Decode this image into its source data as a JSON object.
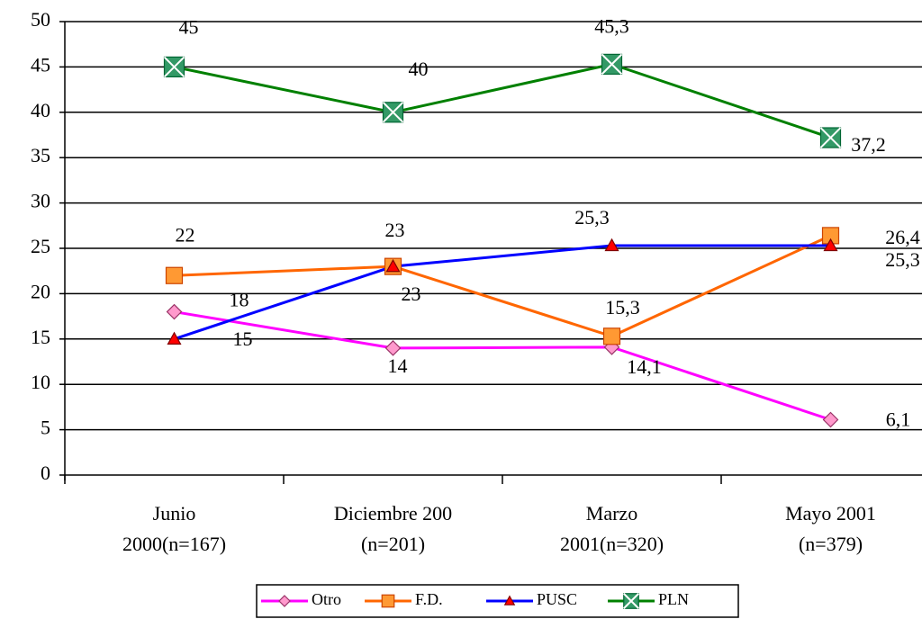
{
  "chart_data": {
    "type": "line",
    "categories": [
      [
        "Junio",
        "2000(n=167)"
      ],
      [
        "Diciembre 200",
        "(n=201)"
      ],
      [
        "Marzo",
        "2001(n=320)"
      ],
      [
        "Mayo 2001",
        "(n=379)"
      ]
    ],
    "series": [
      {
        "name": "Otro",
        "color": "#ff00ff",
        "marker": "diamond",
        "marker_color": "#ff99cc",
        "values": [
          18,
          14,
          14.1,
          6.1
        ],
        "value_labels": [
          "18",
          "14",
          "14,1",
          "6,1"
        ]
      },
      {
        "name": "F.D.",
        "color": "#ff6600",
        "marker": "square",
        "marker_color": "#ff9933",
        "values": [
          22,
          23,
          15.3,
          26.4
        ],
        "value_labels": [
          "22",
          "23",
          "15,3",
          "26,4"
        ]
      },
      {
        "name": "PUSC",
        "color": "#0000ff",
        "marker": "triangle",
        "marker_color": "#ff0000",
        "values": [
          15,
          23,
          25.3,
          25.3
        ],
        "value_labels": [
          "15",
          "23",
          "25,3",
          "25,3"
        ]
      },
      {
        "name": "PLN",
        "color": "#008000",
        "marker": "boxx",
        "marker_color": "#339966",
        "values": [
          45,
          40,
          45.3,
          37.2
        ],
        "value_labels": [
          "45",
          "40",
          "45,3",
          "37,2"
        ]
      }
    ],
    "ylim": [
      0,
      50
    ],
    "yticks": [
      0,
      5,
      10,
      15,
      20,
      25,
      30,
      35,
      40,
      45,
      50
    ],
    "grid": true,
    "legend": "bottom"
  }
}
